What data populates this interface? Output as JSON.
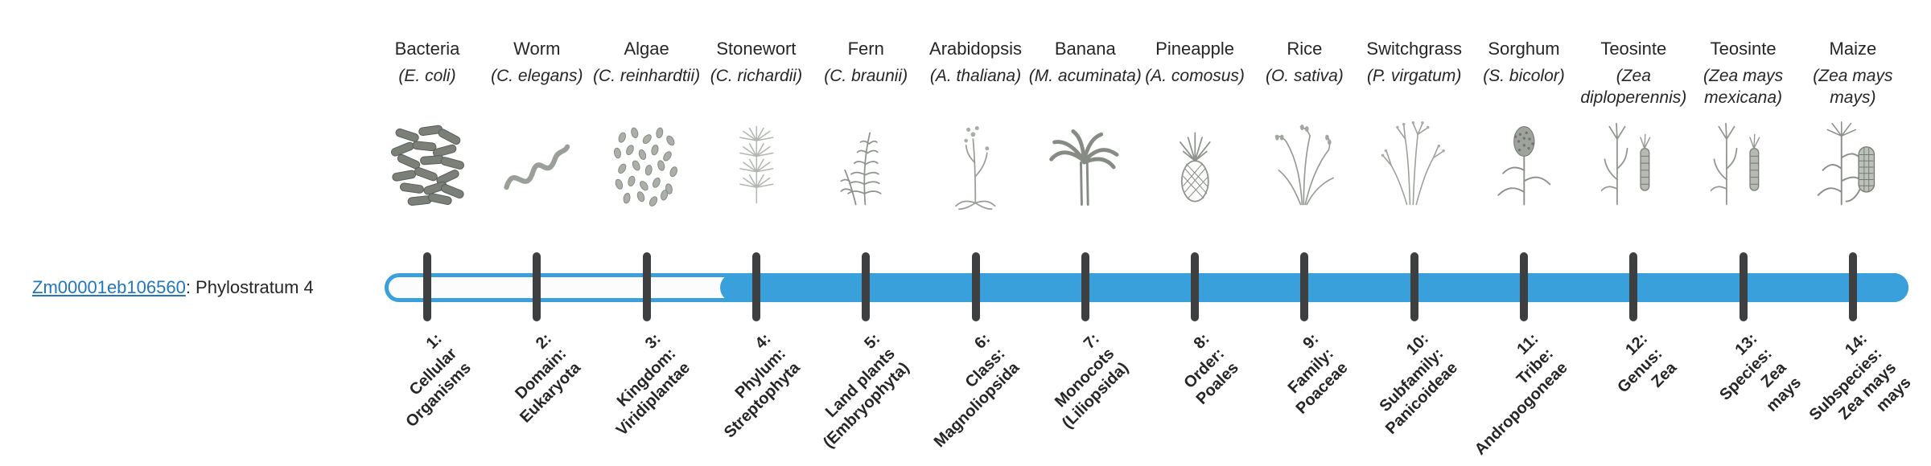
{
  "gene_label": {
    "id": "Zm00001eb106560",
    "rest": ": Phylostratum 4"
  },
  "timeline": {
    "bar_color": "#3aa0dc",
    "track_color": "#fcfcfc",
    "tick_color": "#3d3f41",
    "link_color": "#2176bd",
    "filled_from_index": 3
  },
  "columns": [
    {
      "common": "Bacteria",
      "scientific": "(E. coli)",
      "icon": "bacteria-illustration",
      "stratum_lines": [
        "1:",
        "Cellular",
        "Organisms"
      ]
    },
    {
      "common": "Worm",
      "scientific": "(C. elegans)",
      "icon": "worm-illustration",
      "stratum_lines": [
        "2:",
        "Domain:",
        "Eukaryota"
      ]
    },
    {
      "common": "Algae",
      "scientific": "(C. reinhardtii)",
      "icon": "algae-illustration",
      "stratum_lines": [
        "3:",
        "Kingdom:",
        "Viridiplantae"
      ]
    },
    {
      "common": "Stonewort",
      "scientific": "(C. richardii)",
      "icon": "stonewort-illustration",
      "stratum_lines": [
        "4:",
        "Phylum:",
        "Streptophyta"
      ]
    },
    {
      "common": "Fern",
      "scientific": "(C. braunii)",
      "icon": "fern-illustration",
      "stratum_lines": [
        "5:",
        "Land plants",
        "(Embryophyta)"
      ]
    },
    {
      "common": "Arabidopsis",
      "scientific": "(A. thaliana)",
      "icon": "arabidopsis-illustration",
      "stratum_lines": [
        "6:",
        "Class:",
        "Magnoliopsida"
      ]
    },
    {
      "common": "Banana",
      "scientific": "(M. acuminata)",
      "icon": "banana-illustration",
      "stratum_lines": [
        "7:",
        "Monocots",
        "(Liliopsida)"
      ]
    },
    {
      "common": "Pineapple",
      "scientific": "(A. comosus)",
      "icon": "pineapple-illustration",
      "stratum_lines": [
        "8:",
        "Order:",
        "Poales"
      ]
    },
    {
      "common": "Rice",
      "scientific": "(O. sativa)",
      "icon": "rice-illustration",
      "stratum_lines": [
        "9:",
        "Family:",
        "Poaceae"
      ]
    },
    {
      "common": "Switchgrass",
      "scientific": "(P. virgatum)",
      "icon": "switchgrass-illustration",
      "stratum_lines": [
        "10:",
        "Subfamily:",
        "Panicoideae"
      ]
    },
    {
      "common": "Sorghum",
      "scientific": "(S. bicolor)",
      "icon": "sorghum-illustration",
      "stratum_lines": [
        "11:",
        "Tribe:",
        "Andropogoneae"
      ]
    },
    {
      "common": "Teosinte",
      "scientific": "(Zea diploperennis)",
      "icon": "teosinte-illustration",
      "stratum_lines": [
        "12:",
        "Genus:",
        "Zea"
      ]
    },
    {
      "common": "Teosinte",
      "scientific": "(Zea mays mexicana)",
      "icon": "teosinte-illustration",
      "stratum_lines": [
        "13:",
        "Species:",
        "Zea",
        "mays"
      ]
    },
    {
      "common": "Maize",
      "scientific": "(Zea mays mays)",
      "icon": "maize-illustration",
      "stratum_lines": [
        "14:",
        "Subspecies:",
        "Zea mays",
        "mays"
      ]
    }
  ]
}
